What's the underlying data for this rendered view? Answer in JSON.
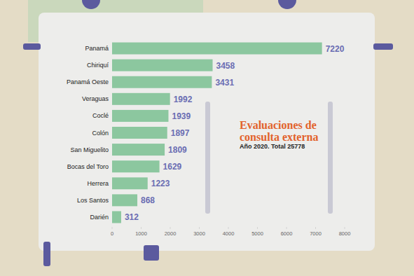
{
  "chart_data": {
    "type": "bar",
    "orientation": "horizontal",
    "title": "Evaluaciones de consulta externa",
    "subtitle": "Año 2020. Total 25778",
    "categories": [
      "Panamá",
      "Chiriquí",
      "Panamá Oeste",
      "Veraguas",
      "Coclé",
      "Colón",
      "San Miguelito",
      "Bocas del Toro",
      "Herrera",
      "Los Santos",
      "Darién"
    ],
    "values": [
      7220,
      3458,
      3431,
      1992,
      1939,
      1897,
      1809,
      1629,
      1223,
      868,
      312
    ],
    "color": "#8cc79f",
    "xlim": [
      0,
      8000
    ],
    "xticks": [
      0,
      1000,
      2000,
      3000,
      4000,
      5000,
      6000,
      7000,
      8000
    ],
    "grid": false,
    "data_labels": true
  }
}
